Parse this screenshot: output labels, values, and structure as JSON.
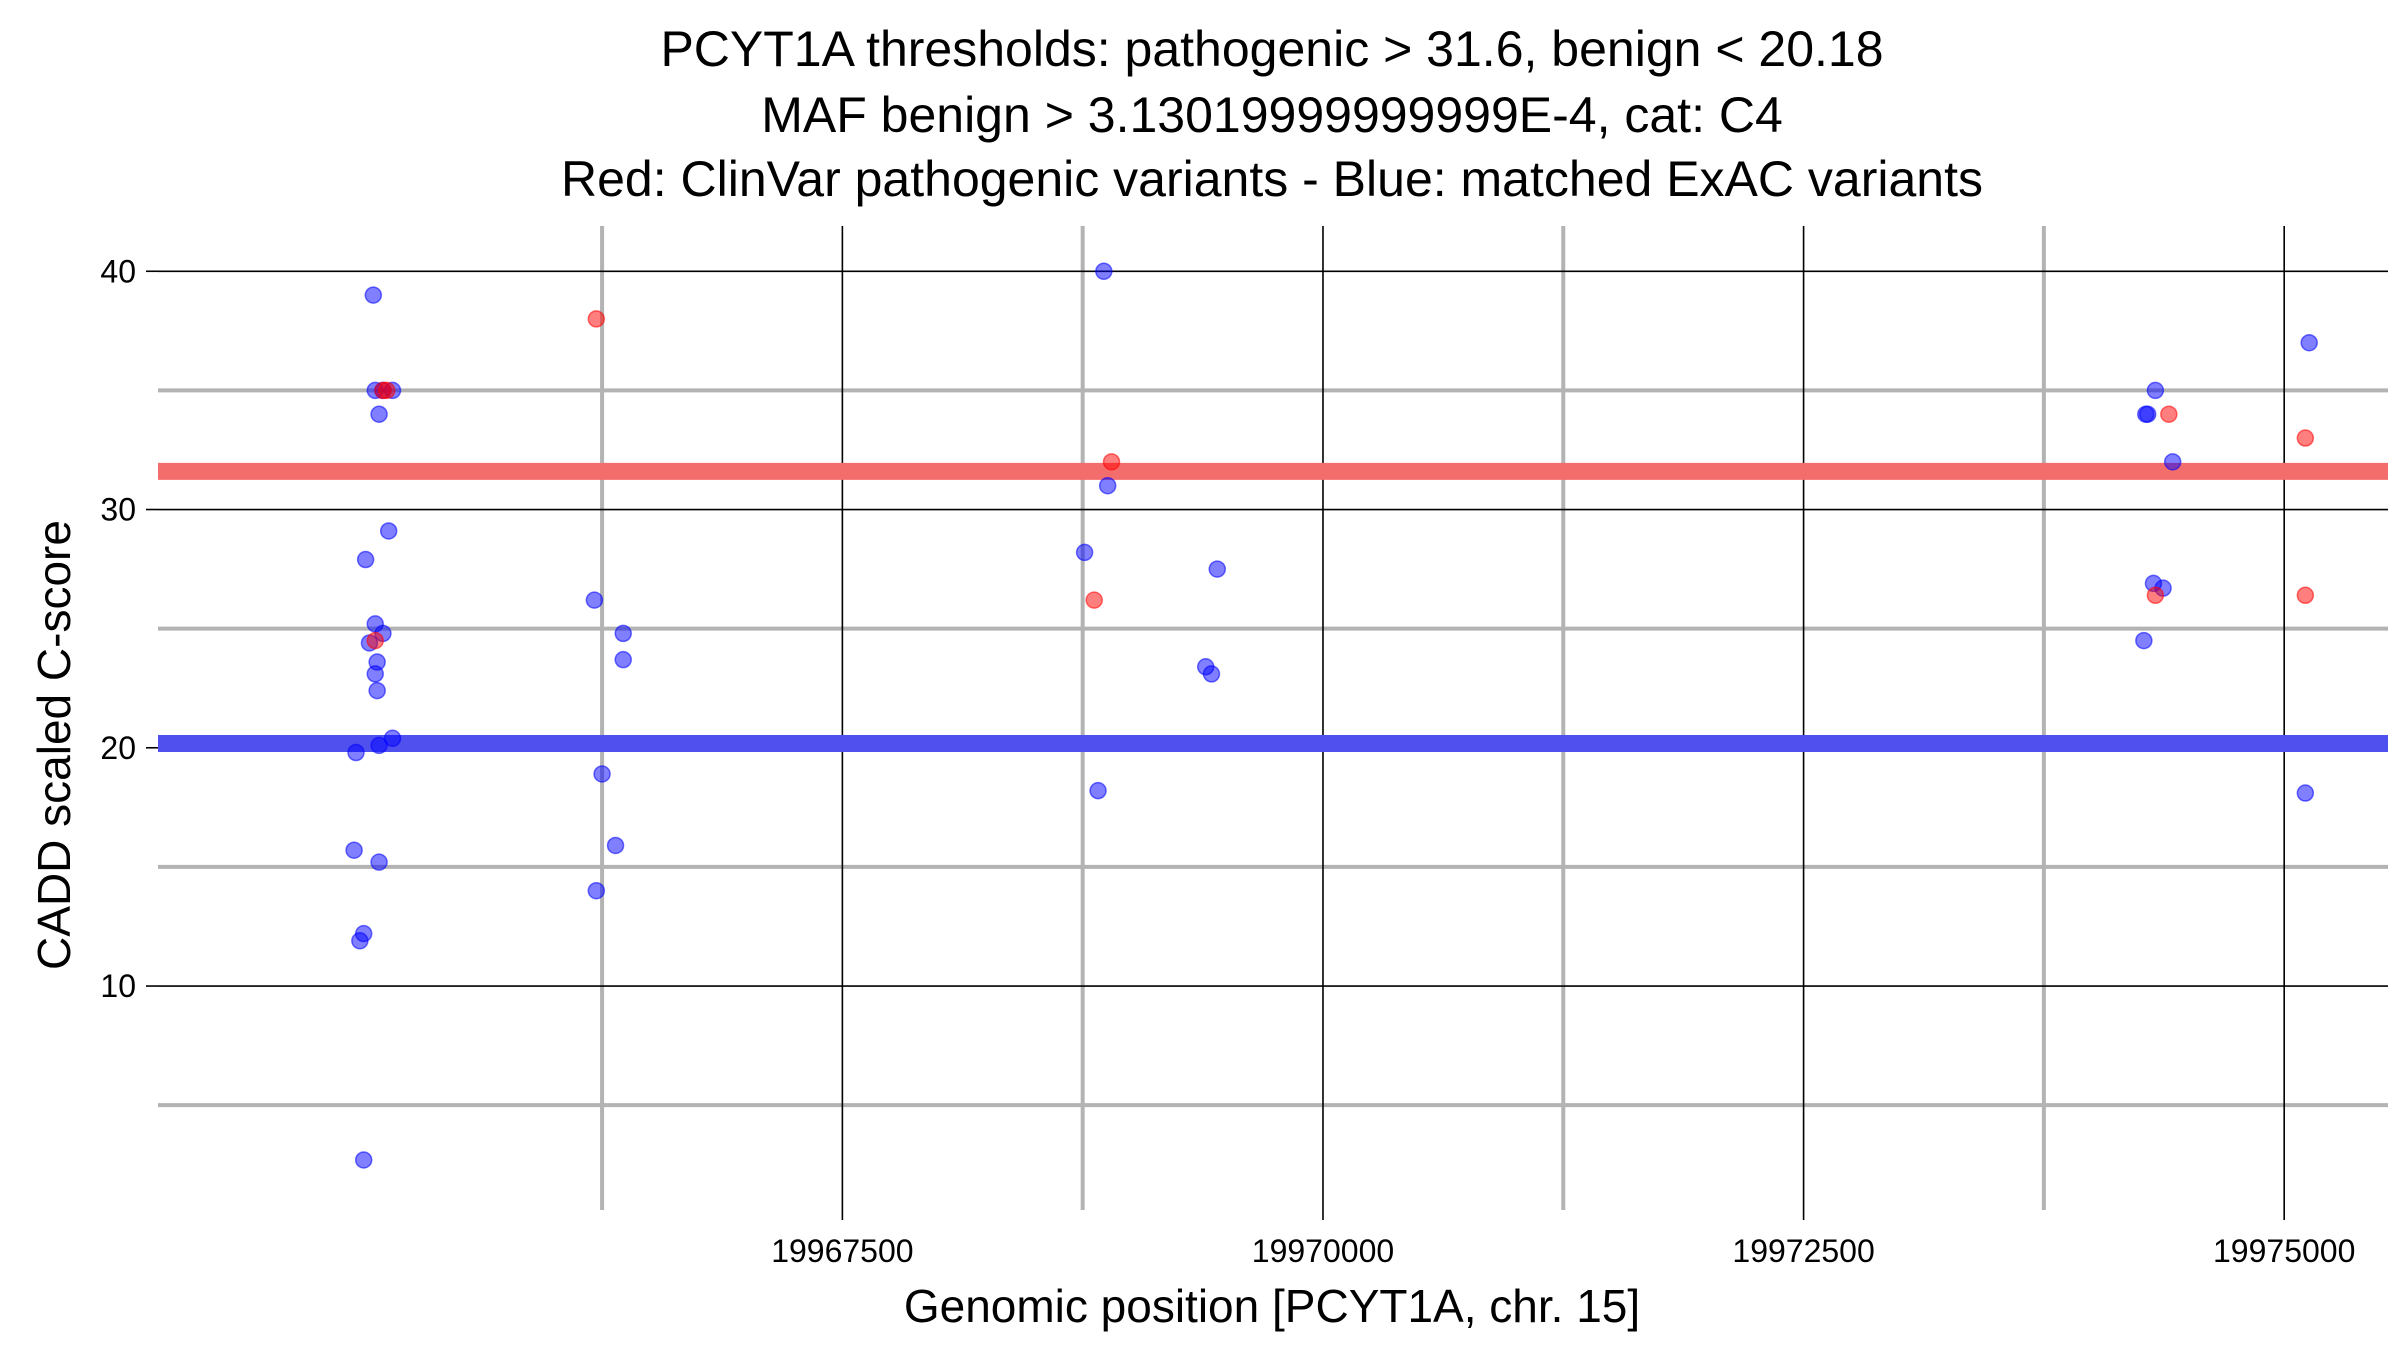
{
  "chart_data": {
    "type": "scatter",
    "title": [
      "PCYT1A thresholds: pathogenic > 31.6, benign < 20.18",
      "MAF benign > 3.13019999999999E-4, cat: C4",
      "Red: ClinVar pathogenic variants - Blue: matched ExAC variants"
    ],
    "xlabel": "Genomic position [PCYT1A, chr. 15]",
    "ylabel": "CADD scaled C-score",
    "xlim": [
      19963940,
      19975540
    ],
    "ylim": [
      0.6,
      41.9
    ],
    "x_major_ticks": [
      19967500,
      19970000,
      19972500,
      19975000
    ],
    "x_minor_ticks": [
      19966250,
      19968750,
      19971250,
      19973750
    ],
    "y_major_ticks": [
      10,
      20,
      30,
      40
    ],
    "y_minor_ticks": [
      5,
      15,
      25,
      35
    ],
    "x_tick_labels": [
      "19967500",
      "19970000",
      "19972500",
      "19975000"
    ],
    "y_tick_labels": [
      "10",
      "20",
      "30",
      "40"
    ],
    "grid": true,
    "thresholds": {
      "pathogenic": {
        "value": 31.6,
        "color": "#f46d6d"
      },
      "benign": {
        "value": 20.18,
        "color": "#5050ee"
      }
    },
    "colors": {
      "pathogenic_point": "#ff0000",
      "benign_point": "#0000ff",
      "major_grid": "#000000",
      "minor_grid": "#b3b3b3"
    },
    "series": [
      {
        "name": "ClinVar pathogenic variants",
        "color": "#ff0000",
        "points": [
          [
            19965110,
            35.0
          ],
          [
            19965130,
            35.0
          ],
          [
            19965070,
            24.5
          ],
          [
            19966220,
            38.0
          ],
          [
            19968810,
            26.2
          ],
          [
            19968900,
            32.0
          ],
          [
            19974400,
            34.0
          ],
          [
            19974330,
            26.4
          ],
          [
            19975110,
            33.0
          ],
          [
            19975110,
            26.4
          ]
        ]
      },
      {
        "name": "matched ExAC variants",
        "color": "#0000ff",
        "points": [
          [
            19965060,
            39.0
          ],
          [
            19965070,
            35.0
          ],
          [
            19965110,
            35.0
          ],
          [
            19965160,
            35.0
          ],
          [
            19965090,
            34.0
          ],
          [
            19965140,
            29.1
          ],
          [
            19965020,
            27.9
          ],
          [
            19965070,
            25.2
          ],
          [
            19965110,
            24.8
          ],
          [
            19965040,
            24.4
          ],
          [
            19965080,
            23.6
          ],
          [
            19965070,
            23.1
          ],
          [
            19965080,
            22.4
          ],
          [
            19965160,
            20.4
          ],
          [
            19965090,
            20.1
          ],
          [
            19964970,
            19.8
          ],
          [
            19964960,
            15.7
          ],
          [
            19965090,
            15.2
          ],
          [
            19965010,
            12.2
          ],
          [
            19964990,
            11.9
          ],
          [
            19965010,
            2.7
          ],
          [
            19966210,
            26.2
          ],
          [
            19966360,
            24.8
          ],
          [
            19966360,
            23.7
          ],
          [
            19966250,
            18.9
          ],
          [
            19966320,
            15.9
          ],
          [
            19966220,
            14.0
          ],
          [
            19968860,
            40.0
          ],
          [
            19968880,
            31.0
          ],
          [
            19968760,
            28.2
          ],
          [
            19968830,
            18.2
          ],
          [
            19969450,
            27.5
          ],
          [
            19969390,
            23.4
          ],
          [
            19969420,
            23.1
          ],
          [
            19974330,
            35.0
          ],
          [
            19974280,
            34.0
          ],
          [
            19974290,
            34.0
          ],
          [
            19974420,
            32.0
          ],
          [
            19974320,
            26.9
          ],
          [
            19974370,
            26.7
          ],
          [
            19974270,
            24.5
          ],
          [
            19975130,
            37.0
          ],
          [
            19975110,
            18.1
          ]
        ]
      }
    ]
  }
}
